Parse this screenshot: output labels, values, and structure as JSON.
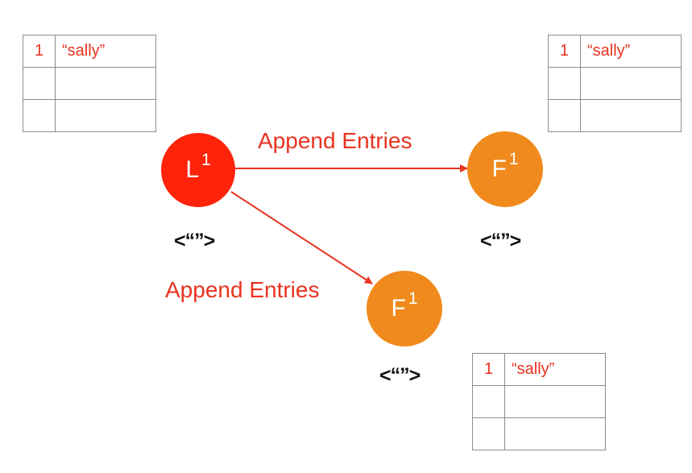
{
  "colors": {
    "leader": "#fe2309",
    "follower": "#f08a1c",
    "arrow": "#e8331f",
    "log_text": "#e8331f",
    "table_border": "#8c8c8c"
  },
  "nodes": [
    {
      "id": "leader",
      "letter": "L",
      "term": "1",
      "vote": "<“”>"
    },
    {
      "id": "follower-right",
      "letter": "F",
      "term": "1",
      "vote": "<“”>"
    },
    {
      "id": "follower-bottom",
      "letter": "F",
      "term": "1",
      "vote": "<“”>"
    }
  ],
  "logs": [
    {
      "owner": "leader",
      "rows": [
        {
          "term": "1",
          "command": "“sally”"
        },
        {
          "term": "",
          "command": ""
        },
        {
          "term": "",
          "command": ""
        }
      ]
    },
    {
      "owner": "follower-right",
      "rows": [
        {
          "term": "1",
          "command": "“sally”"
        },
        {
          "term": "",
          "command": ""
        },
        {
          "term": "",
          "command": ""
        }
      ]
    },
    {
      "owner": "follower-bottom",
      "rows": [
        {
          "term": "1",
          "command": "“sally”"
        },
        {
          "term": "",
          "command": ""
        },
        {
          "term": "",
          "command": ""
        }
      ]
    }
  ],
  "edges": [
    {
      "from": "leader",
      "to": "follower-right",
      "label": "Append Entries"
    },
    {
      "from": "leader",
      "to": "follower-bottom",
      "label": "Append Entries"
    }
  ]
}
